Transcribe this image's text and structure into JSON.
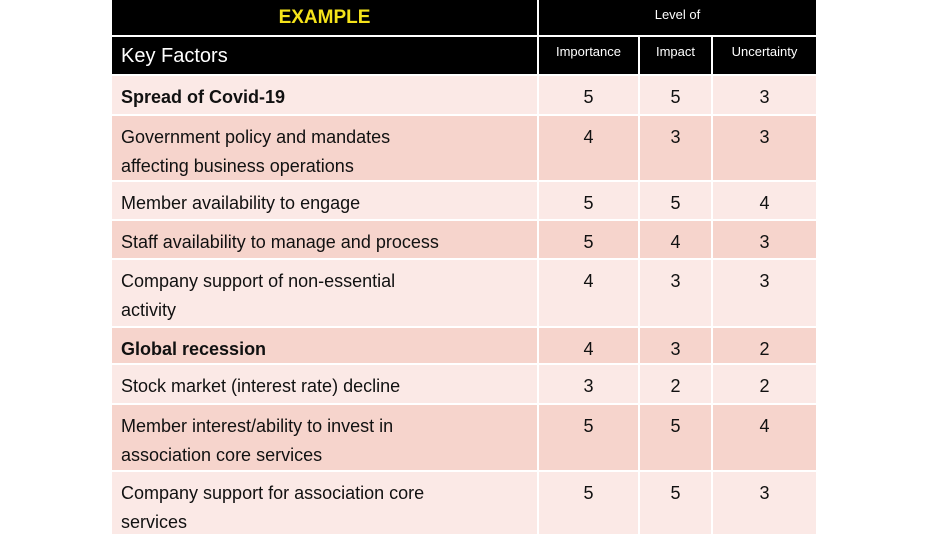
{
  "header": {
    "title": "EXAMPLE",
    "group": "Level of"
  },
  "table": {
    "columns": [
      "Key Factors",
      "Importance",
      "Impact",
      "Uncertainty"
    ],
    "rows": [
      [
        "Spread of Covid-19",
        5,
        5,
        3
      ],
      [
        "Government policy and mandates affecting business operations",
        4,
        3,
        3
      ],
      [
        "Member availability to engage",
        5,
        5,
        4
      ],
      [
        "Staff availability to manage and process",
        5,
        4,
        3
      ],
      [
        "Company support of non-essential activity",
        4,
        3,
        3
      ],
      [
        "Global recession",
        4,
        3,
        2
      ],
      [
        "Stock market (interest rate) decline",
        3,
        2,
        2
      ],
      [
        "Member interest/ability to invest in association core services",
        5,
        5,
        4
      ],
      [
        "Company support for association core services",
        5,
        5,
        3
      ]
    ],
    "bold_rows": [
      0,
      5
    ]
  }
}
